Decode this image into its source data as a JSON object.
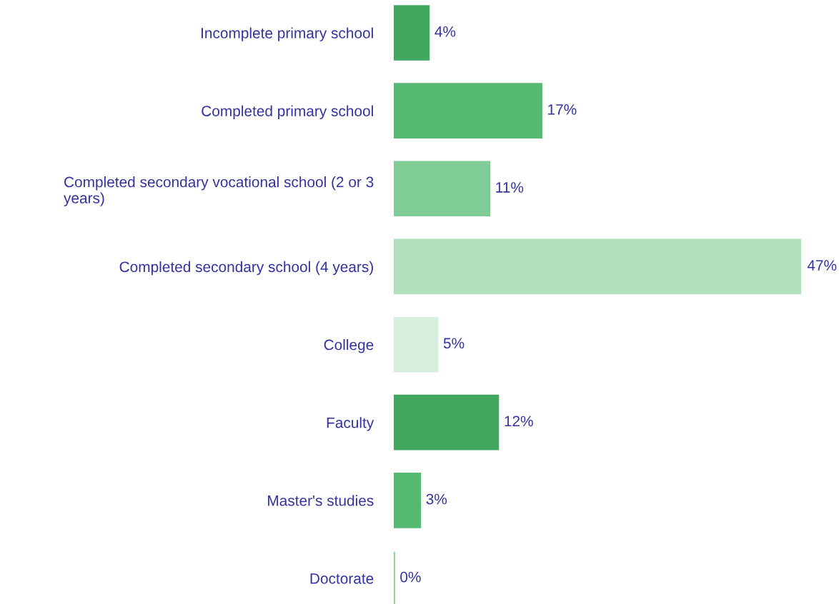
{
  "chart_data": {
    "type": "bar",
    "orientation": "horizontal",
    "categories": [
      "Incomplete primary school",
      "Completed primary school",
      "Completed secondary vocational school (2 or 3\nyears)",
      "Completed secondary school (4 years)",
      "College",
      "Faculty",
      "Master's studies",
      "Doctorate"
    ],
    "values": [
      4,
      17,
      11,
      47,
      5,
      12,
      3,
      0
    ],
    "colors": [
      "#43a85f",
      "#55b971",
      "#80cc96",
      "#b2e0bf",
      "#d8efdf",
      "#43a85f",
      "#55b971",
      "#80cc96"
    ],
    "value_labels": [
      "4%",
      "17%",
      "11%",
      "47%",
      "5%",
      "12%",
      "3%",
      "0%"
    ],
    "grid": false,
    "legend": false
  }
}
